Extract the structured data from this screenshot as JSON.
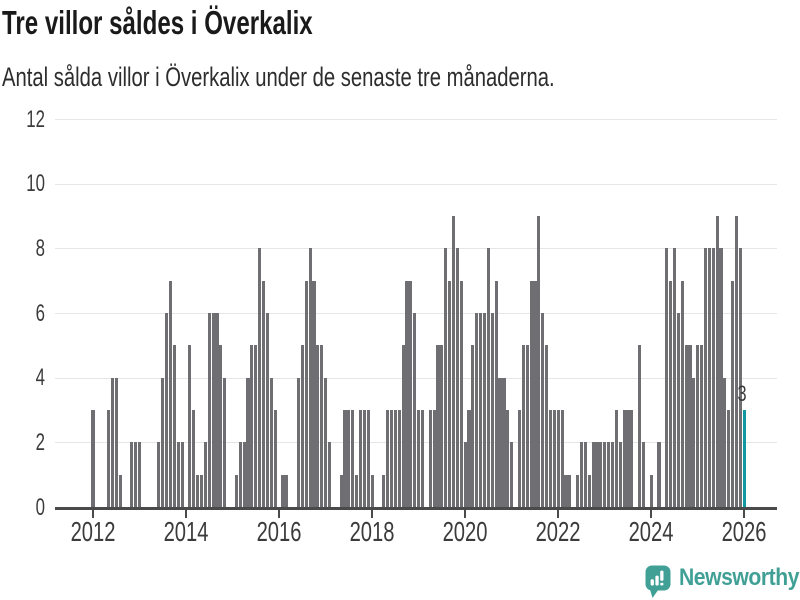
{
  "header": {
    "title": "Tre villor såldes i Överkalix",
    "subtitle": "Antal sålda villor i Överkalix under de senaste tre månaderna."
  },
  "chart_data": {
    "type": "bar",
    "title": "Tre villor såldes i Överkalix",
    "subtitle": "Antal sålda villor i Överkalix under de senaste tre månaderna.",
    "ylabel": "",
    "xlabel": "",
    "ylim": [
      0,
      12
    ],
    "y_ticks": [
      0,
      2,
      4,
      6,
      8,
      10,
      12
    ],
    "x_tick_labels": [
      "2012",
      "2014",
      "2016",
      "2018",
      "2020",
      "2022",
      "2024",
      "2026"
    ],
    "grid": "horizontal",
    "legend_position": "none",
    "start_month": "2011-04",
    "values": [
      0,
      0,
      0,
      0,
      0,
      0,
      0,
      0,
      0,
      3,
      0,
      0,
      0,
      3,
      4,
      4,
      1,
      0,
      0,
      2,
      2,
      2,
      0,
      0,
      0,
      0,
      2,
      4,
      6,
      7,
      5,
      2,
      2,
      0,
      5,
      3,
      1,
      1,
      2,
      6,
      6,
      6,
      5,
      4,
      0,
      0,
      1,
      2,
      2,
      4,
      5,
      5,
      8,
      7,
      6,
      4,
      3,
      0,
      1,
      1,
      0,
      0,
      4,
      5,
      7,
      8,
      7,
      5,
      5,
      4,
      2,
      0,
      0,
      1,
      3,
      3,
      3,
      1,
      3,
      3,
      3,
      1,
      0,
      0,
      1,
      3,
      3,
      3,
      3,
      5,
      7,
      7,
      6,
      3,
      3,
      0,
      3,
      3,
      5,
      5,
      8,
      7,
      9,
      8,
      7,
      2,
      3,
      5,
      6,
      6,
      6,
      8,
      6,
      7,
      4,
      4,
      3,
      2,
      0,
      3,
      5,
      5,
      7,
      7,
      9,
      6,
      5,
      3,
      3,
      3,
      3,
      1,
      1,
      0,
      1,
      2,
      2,
      1,
      2,
      2,
      2,
      2,
      2,
      2,
      3,
      2,
      3,
      3,
      3,
      0,
      5,
      2,
      0,
      1,
      0,
      2,
      0,
      8,
      7,
      8,
      6,
      7,
      5,
      5,
      4,
      5,
      5,
      8,
      8,
      8,
      9,
      8,
      4,
      3,
      7,
      9,
      8,
      3
    ],
    "bar_color": "#6f6e73",
    "highlight": {
      "month": "2026-01",
      "value": 3,
      "label": "3",
      "color": "#1397a1"
    }
  },
  "footer": {
    "brand": "Newsworthy",
    "brand_color": "#41a096",
    "logo_icon": "bar-chart-speech-bubble"
  }
}
